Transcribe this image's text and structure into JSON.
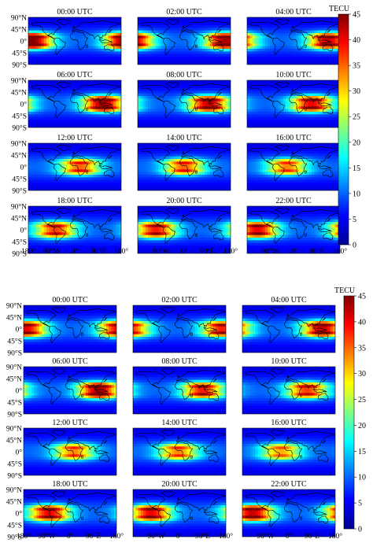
{
  "figure": {
    "panels": [
      {
        "title_times": [
          "00:00 UTC",
          "02:00 UTC",
          "04:00 UTC",
          "06:00 UTC",
          "08:00 UTC",
          "10:00 UTC",
          "12:00 UTC",
          "14:00 UTC",
          "16:00 UTC",
          "18:00 UTC",
          "20:00 UTC",
          "22:00 UTC"
        ],
        "lat_ticks": [
          "90°N",
          "45°N",
          "0°",
          "45°S",
          "90°S"
        ],
        "lon_ticks": [
          "180°",
          "90°W",
          "0°",
          "90°E",
          "180°"
        ],
        "colorbar": {
          "label": "TECU",
          "ticks": [
            "0",
            "5",
            "10",
            "15",
            "20",
            "25",
            "30",
            "35",
            "40",
            "45"
          ]
        }
      },
      {
        "title_times": [
          "00:00 UTC",
          "02:00 UTC",
          "04:00 UTC",
          "06:00 UTC",
          "08:00 UTC",
          "10:00 UTC",
          "12:00 UTC",
          "14:00 UTC",
          "16:00 UTC",
          "18:00 UTC",
          "20:00 UTC",
          "22:00 UTC"
        ],
        "lat_ticks": [
          "90°N",
          "45°N",
          "0°",
          "45°S",
          "90°S"
        ],
        "lon_ticks": [
          "180°",
          "90°W",
          "0°",
          "90°E",
          "180°"
        ],
        "colorbar": {
          "label": "TECU",
          "ticks": [
            "0",
            "5",
            "10",
            "15",
            "20",
            "25",
            "30",
            "35",
            "40",
            "45"
          ]
        }
      }
    ]
  },
  "chart_data": [
    {
      "type": "heatmap",
      "colormap": [
        "#00008f",
        "#0000ff",
        "#0080ff",
        "#00ffff",
        "#80ff80",
        "#ffff00",
        "#ff8000",
        "#ff0000",
        "#800000"
      ],
      "value_range": [
        0,
        45
      ],
      "unit": "TECU",
      "maps": [
        {
          "time": "00:00 UTC",
          "peak_longitude": -165,
          "peak_value": 42
        },
        {
          "time": "02:00 UTC",
          "peak_longitude": 160,
          "peak_value": 40
        },
        {
          "time": "04:00 UTC",
          "peak_longitude": 135,
          "peak_value": 38
        },
        {
          "time": "06:00 UTC",
          "peak_longitude": 110,
          "peak_value": 40
        },
        {
          "time": "08:00 UTC",
          "peak_longitude": 95,
          "peak_value": 38
        },
        {
          "time": "10:00 UTC",
          "peak_longitude": 70,
          "peak_value": 36
        },
        {
          "time": "12:00 UTC",
          "peak_longitude": 20,
          "peak_value": 30
        },
        {
          "time": "14:00 UTC",
          "peak_longitude": 0,
          "peak_value": 30
        },
        {
          "time": "16:00 UTC",
          "peak_longitude": -25,
          "peak_value": 28
        },
        {
          "time": "18:00 UTC",
          "peak_longitude": -75,
          "peak_value": 32
        },
        {
          "time": "20:00 UTC",
          "peak_longitude": -110,
          "peak_value": 34
        },
        {
          "time": "22:00 UTC",
          "peak_longitude": -140,
          "peak_value": 36
        }
      ]
    },
    {
      "type": "heatmap",
      "colormap": [
        "#00008f",
        "#0000ff",
        "#0080ff",
        "#00ffff",
        "#80ff80",
        "#ffff00",
        "#ff8000",
        "#ff0000",
        "#800000"
      ],
      "value_range": [
        0,
        45
      ],
      "unit": "TECU",
      "maps": [
        {
          "time": "00:00 UTC",
          "peak_longitude": -170,
          "peak_value": 36
        },
        {
          "time": "02:00 UTC",
          "peak_longitude": 165,
          "peak_value": 34
        },
        {
          "time": "04:00 UTC",
          "peak_longitude": 130,
          "peak_value": 38
        },
        {
          "time": "06:00 UTC",
          "peak_longitude": 110,
          "peak_value": 40
        },
        {
          "time": "08:00 UTC",
          "peak_longitude": 90,
          "peak_value": 34
        },
        {
          "time": "10:00 UTC",
          "peak_longitude": 70,
          "peak_value": 32
        },
        {
          "time": "12:00 UTC",
          "peak_longitude": 15,
          "peak_value": 28
        },
        {
          "time": "14:00 UTC",
          "peak_longitude": -5,
          "peak_value": 28
        },
        {
          "time": "16:00 UTC",
          "peak_longitude": -30,
          "peak_value": 26
        },
        {
          "time": "18:00 UTC",
          "peak_longitude": -80,
          "peak_value": 36
        },
        {
          "time": "20:00 UTC",
          "peak_longitude": -110,
          "peak_value": 36
        },
        {
          "time": "22:00 UTC",
          "peak_longitude": -140,
          "peak_value": 38
        }
      ]
    }
  ]
}
